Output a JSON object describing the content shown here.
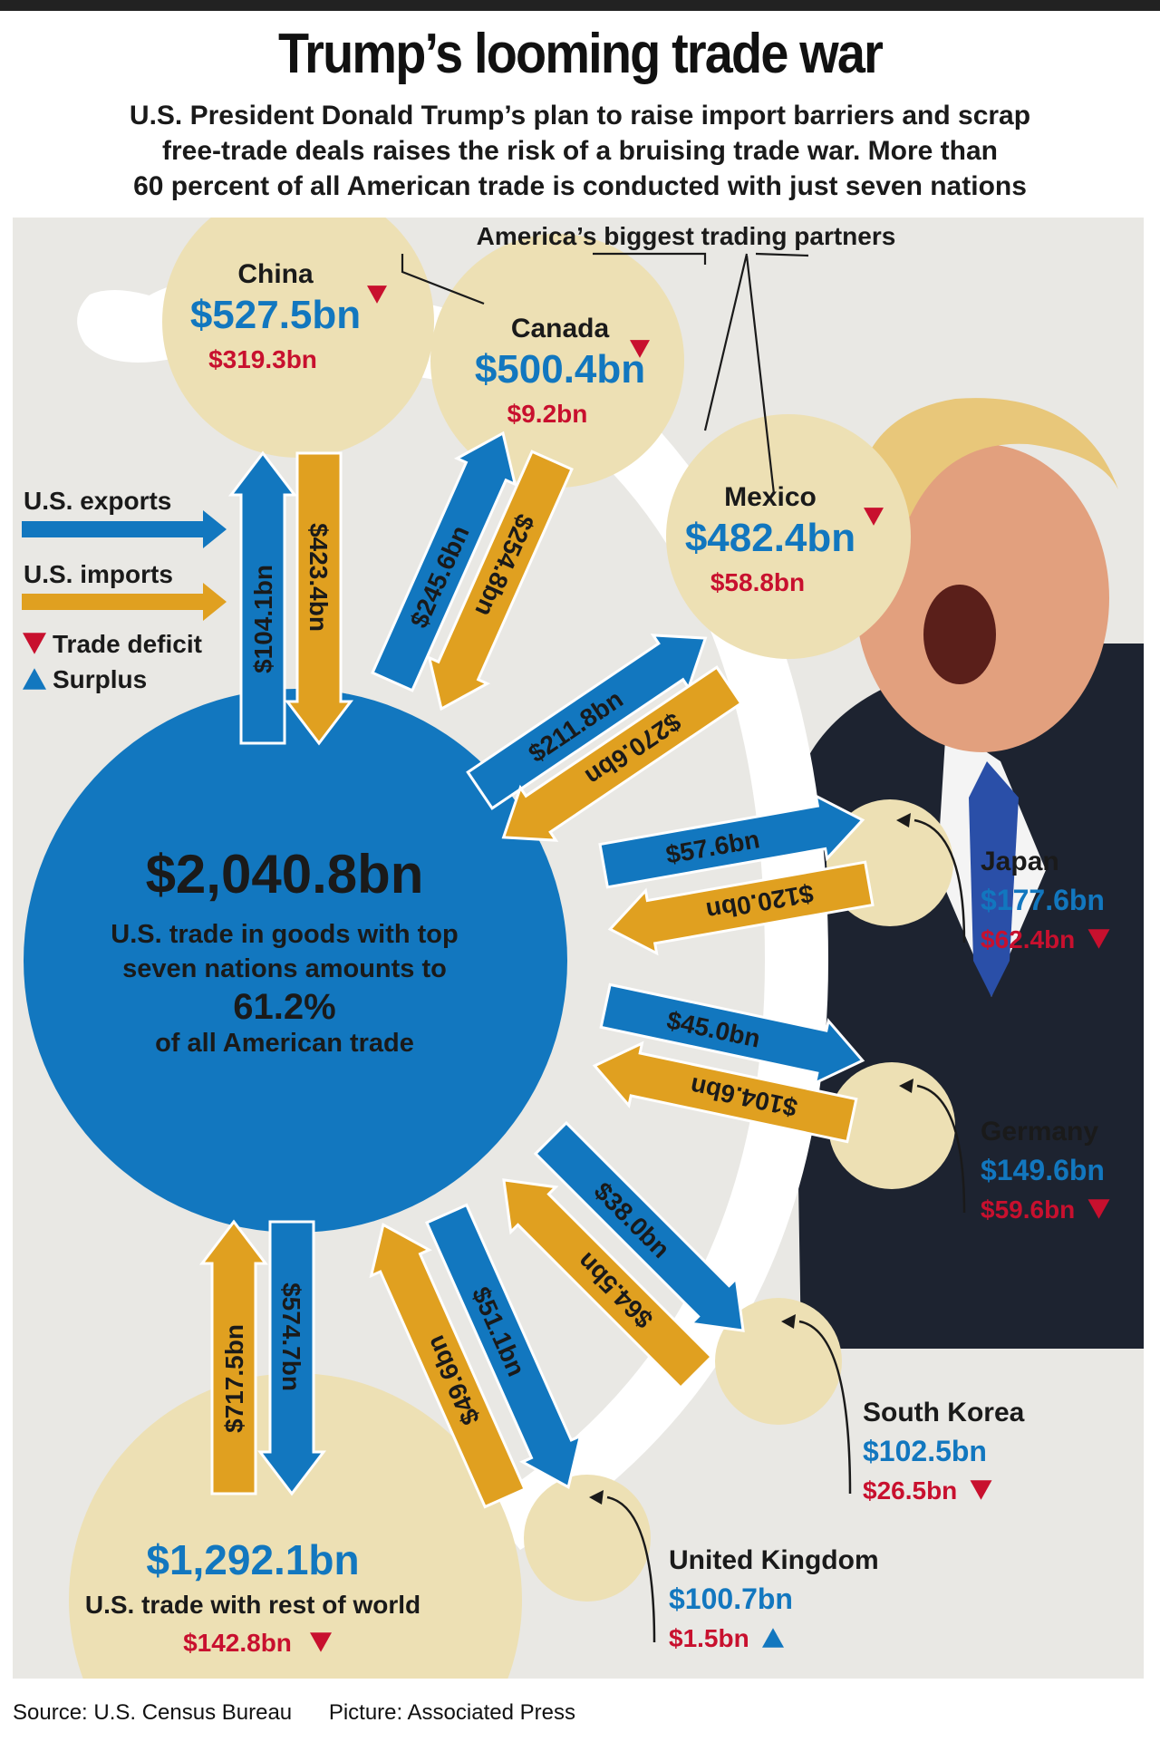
{
  "header": {
    "title": "Trump’s looming trade war",
    "subtitle_lines": [
      "U.S. President Donald Trump’s plan to raise import barriers and scrap",
      "free-trade deals raises the risk of a bruising trade war. More than",
      "60 percent of all American trade is conducted with just seven nations"
    ]
  },
  "colors": {
    "exports_blue": "#1277bf",
    "imports_orange": "#e0a020",
    "deficit_red": "#c8102e",
    "circle_beige": "#ede0b4",
    "background": "#e9e8e4"
  },
  "callout": "America’s biggest trading partners",
  "legend": {
    "exports": "U.S. exports",
    "imports": "U.S. imports",
    "deficit": "Trade deficit",
    "surplus": "Surplus"
  },
  "center": {
    "total": "$2,040.8bn",
    "line1": "U.S. trade in goods with top",
    "line2": "seven nations amounts to",
    "percent": "61.2%",
    "line3": "of all American trade"
  },
  "rest_of_world": {
    "total": "$1,292.1bn",
    "label": "U.S. trade with rest of world",
    "balance": "$142.8bn",
    "balance_type": "deficit",
    "exports": "$574.7bn",
    "imports": "$717.5bn"
  },
  "partners": [
    {
      "name": "China",
      "total": "$527.5bn",
      "balance": "$319.3bn",
      "balance_type": "deficit",
      "exports": "$104.1bn",
      "imports": "$423.4bn"
    },
    {
      "name": "Canada",
      "total": "$500.4bn",
      "balance": "$9.2bn",
      "balance_type": "deficit",
      "exports": "$245.6bn",
      "imports": "$254.8bn"
    },
    {
      "name": "Mexico",
      "total": "$482.4bn",
      "balance": "$58.8bn",
      "balance_type": "deficit",
      "exports": "$211.8bn",
      "imports": "$270.6bn"
    },
    {
      "name": "Japan",
      "total": "$177.6bn",
      "balance": "$62.4bn",
      "balance_type": "deficit",
      "exports": "$57.6bn",
      "imports": "$120.0bn"
    },
    {
      "name": "Germany",
      "total": "$149.6bn",
      "balance": "$59.6bn",
      "balance_type": "deficit",
      "exports": "$45.0bn",
      "imports": "$104.6bn"
    },
    {
      "name": "South Korea",
      "total": "$102.5bn",
      "balance": "$26.5bn",
      "balance_type": "deficit",
      "exports": "$38.0bn",
      "imports": "$64.5bn"
    },
    {
      "name": "United Kingdom",
      "total": "$100.7bn",
      "balance": "$1.5bn",
      "balance_type": "surplus",
      "exports": "$51.1bn",
      "imports": "$49.6bn"
    }
  ],
  "footer": {
    "source": "Source: U.S. Census Bureau",
    "picture": "Picture: Associated Press"
  }
}
